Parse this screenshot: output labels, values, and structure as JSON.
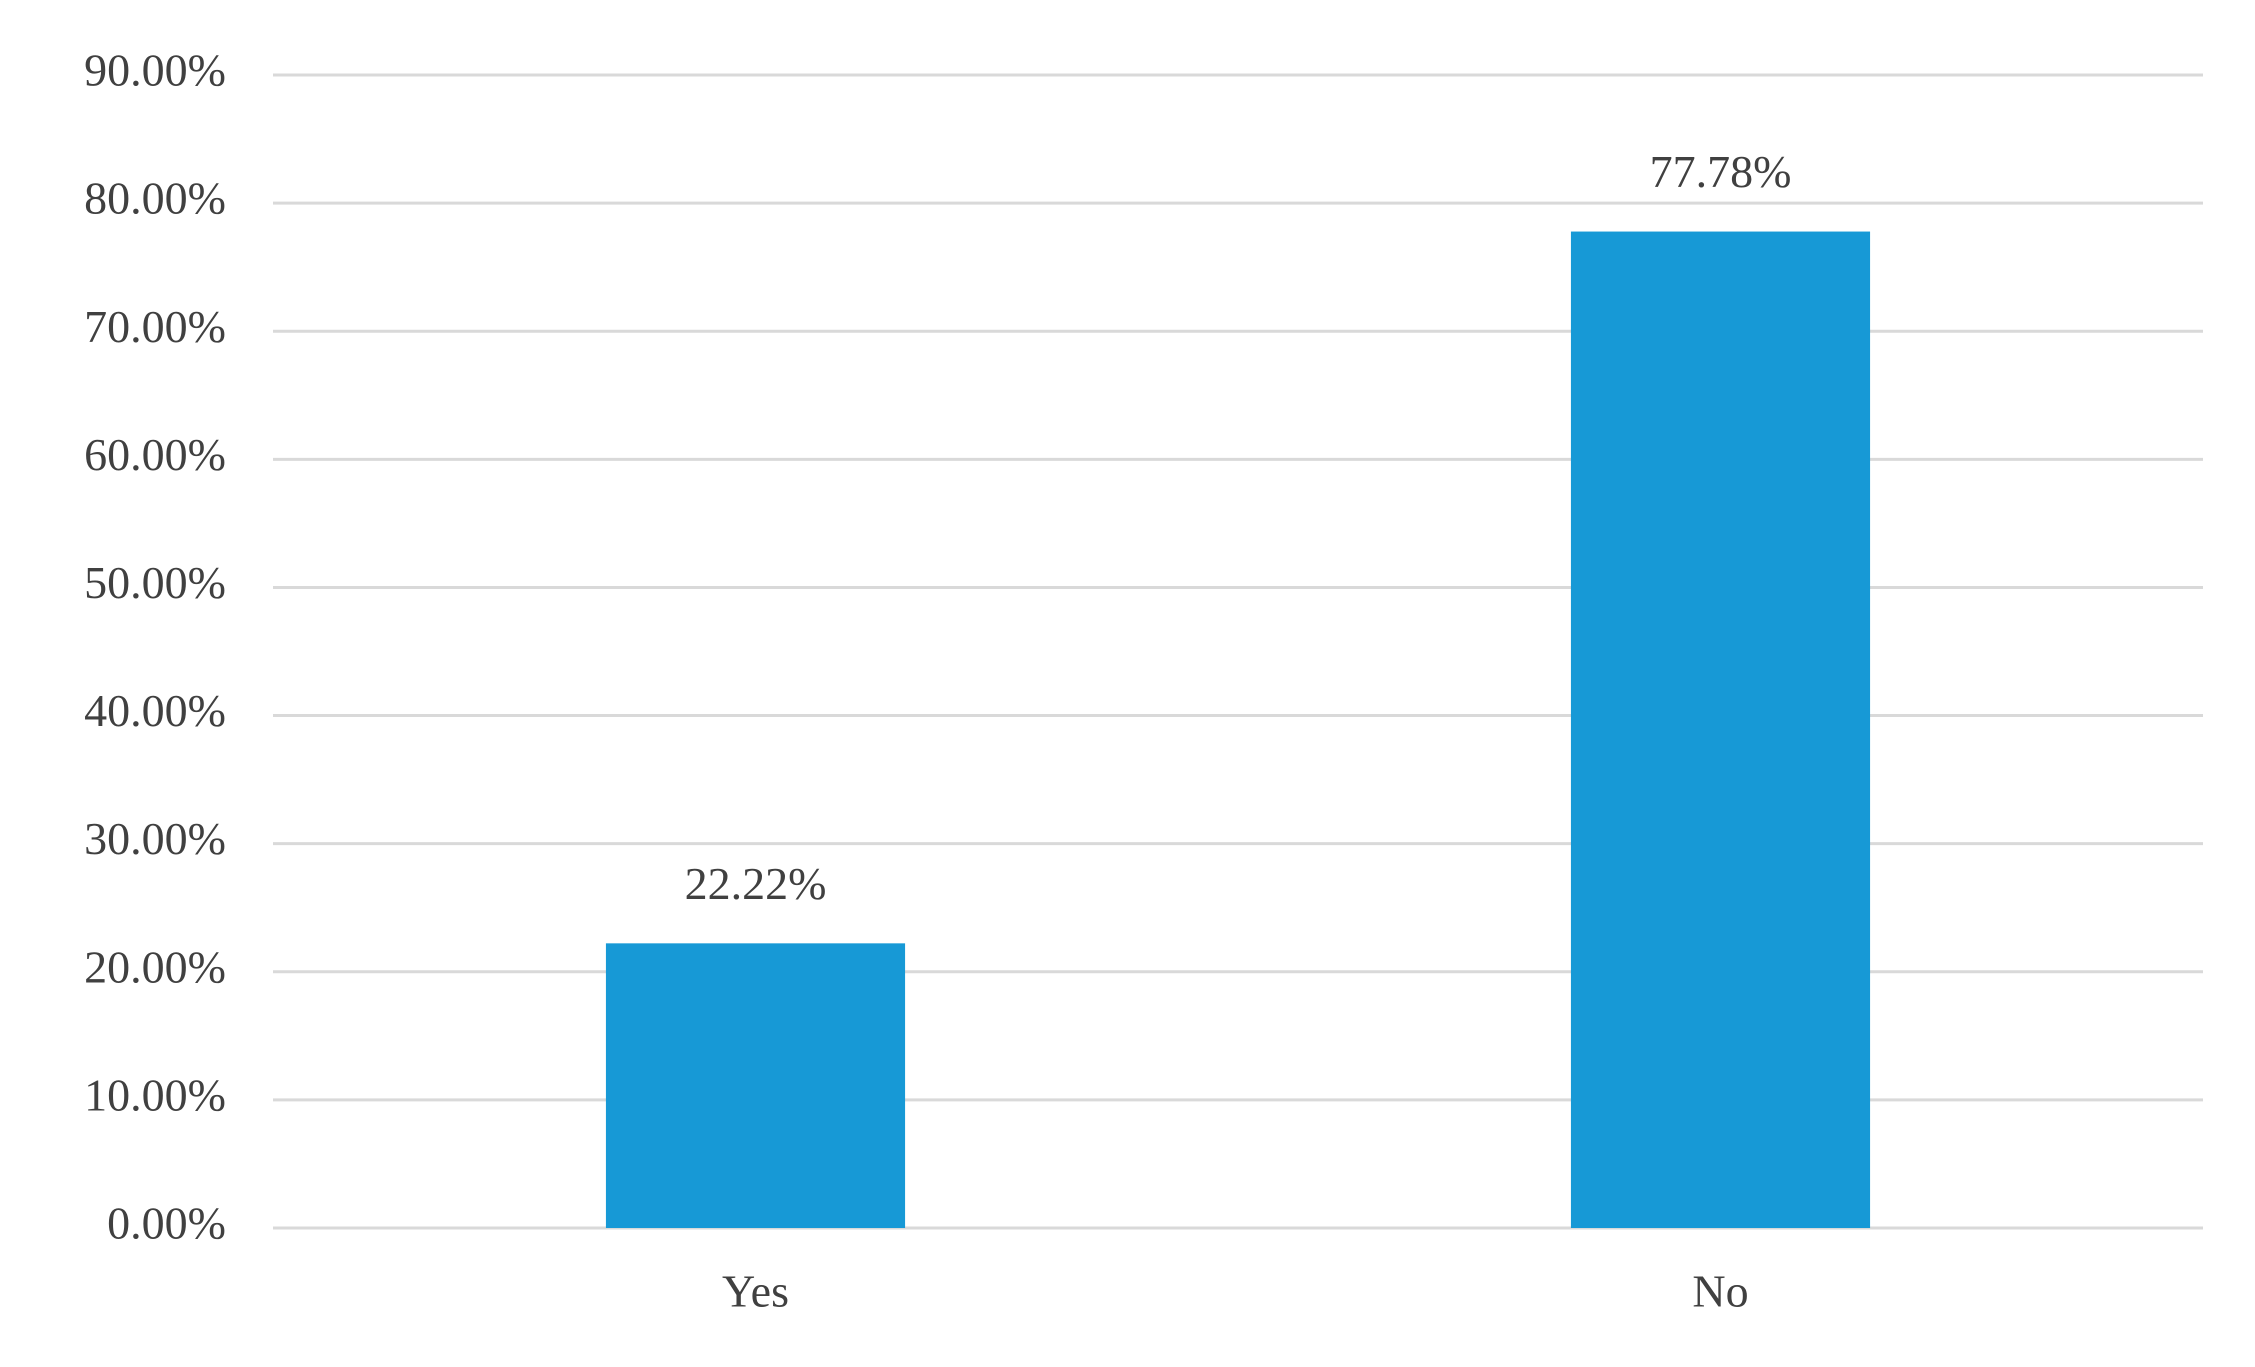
{
  "chart_data": {
    "type": "bar",
    "categories": [
      "Yes",
      "No"
    ],
    "values": [
      22.22,
      77.78
    ],
    "value_labels": [
      "22.22%",
      "77.78%"
    ],
    "color": "#1799d6",
    "ylim": [
      0,
      90
    ],
    "yticks": [
      {
        "value": 0,
        "label": "0.00%"
      },
      {
        "value": 10,
        "label": "10.00%"
      },
      {
        "value": 20,
        "label": "20.00%"
      },
      {
        "value": 30,
        "label": "30.00%"
      },
      {
        "value": 40,
        "label": "40.00%"
      },
      {
        "value": 50,
        "label": "50.00%"
      },
      {
        "value": 60,
        "label": "60.00%"
      },
      {
        "value": 70,
        "label": "70.00%"
      },
      {
        "value": 80,
        "label": "80.00%"
      },
      {
        "value": 90,
        "label": "90.00%"
      }
    ],
    "grid": true
  }
}
